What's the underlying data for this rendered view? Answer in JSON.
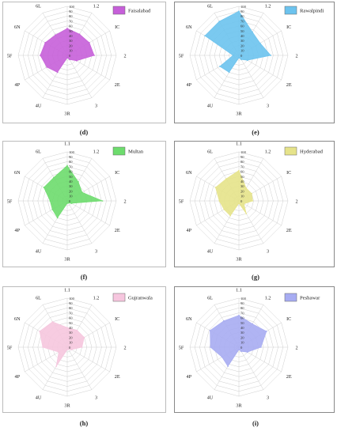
{
  "axes": [
    "1.1",
    "1.2",
    "IC",
    "2",
    "2E",
    "3",
    "3R",
    "4U",
    "4P",
    "5F",
    "6N",
    "6L"
  ],
  "ticks": [
    "0",
    "10",
    "20",
    "30",
    "40",
    "50",
    "60",
    "70",
    "80",
    "90",
    "100"
  ],
  "chart_data": [
    {
      "type": "radar",
      "panel": "(d)",
      "name": "Faisalabad",
      "color": "#c65fd9",
      "rlim": [
        0,
        100
      ],
      "values": [
        55,
        50,
        52,
        55,
        22,
        10,
        5,
        40,
        48,
        55,
        52,
        48
      ]
    },
    {
      "type": "radar",
      "panel": "(e)",
      "name": "Rawalpindi",
      "color": "#6cc3ee",
      "rlim": [
        0,
        100
      ],
      "values": [
        90,
        55,
        50,
        65,
        20,
        10,
        5,
        40,
        45,
        12,
        80,
        80
      ]
    },
    {
      "type": "radar",
      "panel": "(f)",
      "name": "Multan",
      "color": "#6ddc6d",
      "rlim": [
        0,
        100
      ],
      "values": [
        72,
        45,
        35,
        72,
        10,
        5,
        5,
        40,
        35,
        35,
        55,
        55
      ]
    },
    {
      "type": "radar",
      "panel": "(g)",
      "name": "Hyderabad",
      "color": "#e6e38a",
      "rlim": [
        0,
        100
      ],
      "values": [
        62,
        30,
        30,
        28,
        12,
        30,
        5,
        35,
        35,
        40,
        55,
        52
      ]
    },
    {
      "type": "radar",
      "panel": "(h)",
      "name": "Gujranwala",
      "color": "#f6c6de",
      "rlim": [
        0,
        100
      ],
      "values": [
        40,
        40,
        40,
        30,
        10,
        5,
        5,
        45,
        20,
        50,
        65,
        60
      ]
    },
    {
      "type": "radar",
      "panel": "(i)",
      "name": "Peshawar",
      "color": "#a7acf2",
      "rlim": [
        0,
        100
      ],
      "values": [
        65,
        55,
        65,
        45,
        20,
        10,
        5,
        45,
        40,
        58,
        68,
        62
      ]
    }
  ]
}
